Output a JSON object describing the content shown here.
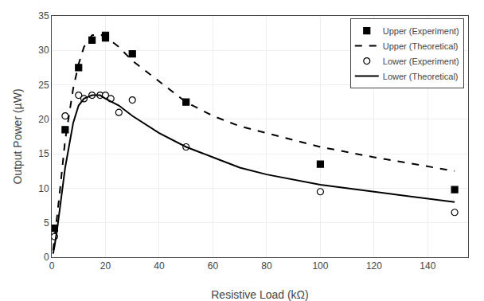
{
  "chart_data": {
    "type": "line",
    "xlabel": "Resistive Load (kΩ)",
    "ylabel": "Output Power (µW)",
    "xlim": [
      0,
      155
    ],
    "ylim": [
      0,
      35
    ],
    "xticks": [
      0,
      20,
      40,
      60,
      80,
      100,
      120,
      140
    ],
    "yticks": [
      0,
      5,
      10,
      15,
      20,
      25,
      30,
      35
    ],
    "grid": true,
    "legend": "upper right",
    "series": [
      {
        "name": "Upper (Experiment)",
        "type": "scatter",
        "marker": "square",
        "color": "black",
        "x": [
          1,
          5,
          10,
          15,
          20,
          20,
          30,
          50,
          100,
          150
        ],
        "values": [
          4.2,
          18.5,
          27.5,
          31.5,
          32.2,
          31.8,
          29.5,
          22.5,
          13.5,
          9.8
        ]
      },
      {
        "name": "Upper (Theoretical)",
        "type": "line",
        "line_style": "dashed",
        "color": "black",
        "x": [
          0.5,
          1,
          2,
          3,
          5,
          8,
          10,
          12,
          15,
          18,
          20,
          25,
          30,
          40,
          50,
          60,
          70,
          80,
          100,
          120,
          150
        ],
        "values": [
          1.0,
          2.5,
          6.0,
          9.5,
          17.0,
          24.5,
          28.0,
          30.5,
          32.2,
          32.3,
          32.0,
          30.5,
          28.5,
          25.5,
          22.5,
          20.5,
          19.0,
          18.0,
          16.0,
          14.5,
          12.5
        ]
      },
      {
        "name": "Lower (Experiment)",
        "type": "scatter",
        "marker": "circle-open",
        "color": "black",
        "x": [
          1,
          5,
          10,
          12,
          15,
          18,
          20,
          22,
          25,
          30,
          50,
          100,
          150
        ],
        "values": [
          3.0,
          20.5,
          23.5,
          23.0,
          23.5,
          23.5,
          23.5,
          23.0,
          21.0,
          22.8,
          16.0,
          9.5,
          6.5
        ]
      },
      {
        "name": "Lower (Theoretical)",
        "type": "line",
        "line_style": "solid",
        "color": "black",
        "x": [
          0.5,
          1,
          2,
          3,
          5,
          8,
          10,
          12,
          15,
          18,
          20,
          25,
          30,
          40,
          50,
          60,
          70,
          80,
          100,
          120,
          150
        ],
        "values": [
          0.5,
          1.5,
          4.0,
          7.0,
          13.0,
          19.5,
          22.0,
          23.0,
          23.5,
          23.5,
          23.0,
          22.0,
          20.5,
          18.0,
          16.0,
          14.5,
          13.0,
          12.0,
          10.5,
          9.5,
          8.0
        ]
      }
    ]
  }
}
